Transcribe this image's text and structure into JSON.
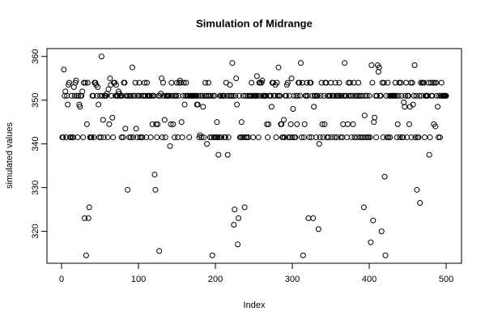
{
  "chart_data": {
    "type": "scatter",
    "title": "Simulation of Midrange",
    "x_label": "Index",
    "y_label": "simulated values",
    "color": "#000000",
    "x": [
      1,
      2,
      3,
      4,
      5,
      6,
      7,
      8,
      9,
      10,
      11,
      12,
      13,
      14,
      15,
      16,
      17,
      18,
      19,
      20,
      21,
      22,
      23,
      24,
      25,
      26,
      27,
      28,
      29,
      30,
      31,
      32,
      33,
      34,
      35,
      36,
      37,
      38,
      39,
      40,
      41,
      42,
      43,
      44,
      45,
      46,
      47,
      48,
      49,
      50,
      51,
      52,
      53,
      54,
      55,
      56,
      57,
      58,
      59,
      60,
      61,
      62,
      63,
      64,
      65,
      66,
      67,
      68,
      69,
      70,
      71,
      72,
      73,
      74,
      75,
      76,
      77,
      78,
      79,
      80,
      81,
      82,
      83,
      84,
      85,
      86,
      87,
      88,
      89,
      90,
      91,
      92,
      93,
      94,
      95,
      96,
      97,
      98,
      99,
      100,
      101,
      102,
      103,
      104,
      105,
      106,
      107,
      108,
      109,
      110,
      111,
      112,
      113,
      114,
      115,
      116,
      117,
      118,
      119,
      120,
      121,
      122,
      123,
      124,
      125,
      126,
      127,
      128,
      129,
      130,
      131,
      132,
      133,
      134,
      135,
      136,
      137,
      138,
      139,
      140,
      141,
      142,
      143,
      144,
      145,
      146,
      147,
      148,
      149,
      150,
      151,
      152,
      153,
      154,
      155,
      156,
      157,
      158,
      159,
      160,
      161,
      162,
      163,
      164,
      165,
      166,
      167,
      168,
      169,
      170,
      171,
      172,
      173,
      174,
      175,
      176,
      177,
      178,
      179,
      180,
      181,
      182,
      183,
      184,
      185,
      186,
      187,
      188,
      189,
      190,
      191,
      192,
      193,
      194,
      195,
      196,
      197,
      198,
      199,
      200,
      201,
      202,
      203,
      204,
      205,
      206,
      207,
      208,
      209,
      210,
      211,
      212,
      213,
      214,
      215,
      216,
      217,
      218,
      219,
      220,
      221,
      222,
      223,
      224,
      225,
      226,
      227,
      228,
      229,
      230,
      231,
      232,
      233,
      234,
      235,
      236,
      237,
      238,
      239,
      240,
      241,
      242,
      243,
      244,
      245,
      246,
      247,
      248,
      249,
      250,
      251,
      252,
      253,
      254,
      255,
      256,
      257,
      258,
      259,
      260,
      261,
      262,
      263,
      264,
      265,
      266,
      267,
      268,
      269,
      270,
      271,
      272,
      273,
      274,
      275,
      276,
      277,
      278,
      279,
      280,
      281,
      282,
      283,
      284,
      285,
      286,
      287,
      288,
      289,
      290,
      291,
      292,
      293,
      294,
      295,
      296,
      297,
      298,
      299,
      300,
      301,
      302,
      303,
      304,
      305,
      306,
      307,
      308,
      309,
      310,
      311,
      312,
      313,
      314,
      315,
      316,
      317,
      318,
      319,
      320,
      321,
      322,
      323,
      324,
      325,
      326,
      327,
      328,
      329,
      330,
      331,
      332,
      333,
      334,
      335,
      336,
      337,
      338,
      339,
      340,
      341,
      342,
      343,
      344,
      345,
      346,
      347,
      348,
      349,
      350,
      351,
      352,
      353,
      354,
      355,
      356,
      357,
      358,
      359,
      360,
      361,
      362,
      363,
      364,
      365,
      366,
      367,
      368,
      369,
      370,
      371,
      372,
      373,
      374,
      375,
      376,
      377,
      378,
      379,
      380,
      381,
      382,
      383,
      384,
      385,
      386,
      387,
      388,
      389,
      390,
      391,
      392,
      393,
      394,
      395,
      396,
      397,
      398,
      399,
      400,
      401,
      402,
      403,
      404,
      405,
      406,
      407,
      408,
      409,
      410,
      411,
      412,
      413,
      414,
      415,
      416,
      417,
      418,
      419,
      420,
      421,
      422,
      423,
      424,
      425,
      426,
      427,
      428,
      429,
      430,
      431,
      432,
      433,
      434,
      435,
      436,
      437,
      438,
      439,
      440,
      441,
      442,
      443,
      444,
      445,
      446,
      447,
      448,
      449,
      450,
      451,
      452,
      453,
      454,
      455,
      456,
      457,
      458,
      459,
      460,
      461,
      462,
      463,
      464,
      465,
      466,
      467,
      468,
      469,
      470,
      471,
      472,
      473,
      474,
      475,
      476,
      477,
      478,
      479,
      480,
      481,
      482,
      483,
      484,
      485,
      486,
      487,
      488,
      489,
      490,
      491,
      492,
      493,
      494,
      495,
      496,
      497,
      498,
      499,
      500
    ],
    "values": [
      341.5,
      341.5,
      357,
      351,
      352,
      341.5,
      351,
      349,
      353.5,
      354,
      341.5,
      341.5,
      351,
      341.5,
      341.5,
      353,
      351,
      354,
      354.5,
      351,
      341.5,
      351,
      349,
      348.5,
      351,
      351,
      352,
      341.5,
      354,
      323,
      354,
      314.5,
      344.5,
      354,
      323,
      325.5,
      341.5,
      341.5,
      341.5,
      351,
      351,
      341.5,
      354,
      354,
      353.5,
      351,
      353,
      349,
      341.5,
      351,
      341.5,
      360,
      351,
      345.5,
      341.5,
      351,
      351,
      351,
      351.5,
      341.5,
      352.5,
      344.5,
      355,
      353.5,
      351,
      346,
      341.5,
      354,
      354,
      351,
      353.5,
      351,
      351,
      352,
      351.5,
      351,
      351,
      341.5,
      351,
      341.5,
      354,
      354,
      343.5,
      351,
      351,
      329.5,
      351,
      341.5,
      351,
      341.5,
      351,
      357.5,
      341.5,
      351,
      351,
      354,
      343.5,
      341.5,
      351,
      351,
      354,
      341.5,
      351,
      341.5,
      341.5,
      351,
      351,
      354,
      351,
      341.5,
      354,
      351,
      351,
      351,
      351,
      341.5,
      351,
      344.5,
      351,
      351,
      333,
      329.5,
      344.5,
      341.5,
      344.5,
      351,
      315.5,
      351,
      351.5,
      355,
      341.5,
      354,
      351,
      345.5,
      341.5,
      351,
      351,
      351,
      351,
      351,
      339.5,
      344.5,
      354,
      351,
      344.5,
      351,
      341.5,
      351,
      351,
      354,
      341.5,
      351,
      354,
      354.5,
      354,
      345,
      341.5,
      351,
      354,
      349,
      351,
      354,
      351,
      351,
      351,
      341.5,
      351,
      351,
      351,
      351,
      351,
      351,
      351,
      351,
      351,
      349,
      349,
      351,
      341.5,
      342,
      351,
      341.5,
      351,
      348.5,
      341.5,
      351,
      354,
      351,
      340,
      351,
      354,
      351,
      341.5,
      351,
      341.5,
      314.5,
      351,
      341.5,
      351,
      341.5,
      341.5,
      345,
      341.5,
      337.5,
      341.5,
      351,
      351,
      341.5,
      351,
      351,
      351,
      341.5,
      341.5,
      354,
      351,
      337.5,
      341.5,
      351,
      353.5,
      351,
      351,
      358.5,
      351,
      321.5,
      325,
      351,
      355,
      349,
      317,
      323,
      351,
      341.5,
      341.5,
      345,
      341.5,
      351,
      341.5,
      325.5,
      351,
      341.5,
      341.5,
      351,
      341.5,
      351,
      351,
      351,
      354,
      351,
      341.5,
      351,
      351,
      351,
      351,
      355.5,
      351,
      341.5,
      354,
      354,
      351,
      354,
      354.5,
      351,
      351,
      351,
      351,
      351,
      344.5,
      341.5,
      344.5,
      351,
      351,
      351,
      348.5,
      354,
      354,
      351,
      351,
      353.5,
      341.5,
      354,
      351,
      357.5,
      351,
      351,
      344.5,
      344.5,
      341.5,
      341.5,
      345.5,
      341.5,
      351,
      351,
      353.5,
      354,
      341.5,
      351,
      341.5,
      344.5,
      355,
      341.5,
      348,
      351,
      341.5,
      341.5,
      351,
      344.5,
      351,
      354,
      354,
      351,
      358.5,
      341.5,
      354,
      314.5,
      341.5,
      344.5,
      351,
      351,
      354,
      351,
      323,
      341.5,
      354,
      354,
      341.5,
      351,
      323,
      348.5,
      351,
      351,
      341.5,
      351,
      351,
      320.5,
      340,
      341.5,
      351,
      354,
      344.5,
      341.5,
      351,
      344.5,
      354,
      354,
      341.5,
      351,
      341.5,
      351,
      351,
      354,
      341.5,
      351,
      351,
      351,
      341.5,
      354,
      351,
      341.5,
      351,
      351,
      354,
      351,
      341.5,
      351,
      341.5,
      344.5,
      351,
      358.5,
      351,
      351,
      341.5,
      344.5,
      354,
      351,
      354,
      351,
      341.5,
      351,
      344.5,
      354,
      341.5,
      351,
      351,
      341.5,
      351,
      354,
      351,
      341.5,
      351,
      341.5,
      351,
      341.5,
      325.5,
      346.5,
      351,
      341.5,
      351,
      341.5,
      341.5,
      351,
      341.5,
      317.5,
      358,
      354,
      322.5,
      345,
      346,
      351,
      341.5,
      351,
      358,
      356.5,
      357.5,
      351,
      351,
      320,
      354,
      341.5,
      354,
      332.5,
      314.5,
      351,
      341.5,
      354,
      341.5,
      351,
      341.5,
      351,
      351,
      351,
      351,
      351,
      351,
      354,
      351,
      341.5,
      344.5,
      351,
      354,
      341.5,
      354,
      351,
      341.5,
      341.5,
      349.5,
      348.5,
      351,
      354,
      341.5,
      351,
      351,
      344.5,
      348.5,
      354,
      341.5,
      354,
      349,
      351,
      358,
      341.5,
      351,
      329.5,
      341.5,
      341.5,
      351,
      326.5,
      354,
      351,
      354,
      354,
      354,
      341.5,
      351,
      351,
      351,
      351,
      354,
      337.5,
      341.5,
      354,
      351,
      351,
      354,
      344.5,
      354,
      344,
      354,
      351,
      348.5,
      341.5,
      351,
      341.5,
      351,
      354,
      351,
      351,
      351,
      351,
      351,
      351
    ],
    "xlim": [
      -18.96,
      519.96
    ],
    "ylim": [
      312.7,
      361.8
    ],
    "xticks": [
      0,
      100,
      200,
      300,
      400,
      500
    ],
    "yticks": [
      320,
      330,
      340,
      350,
      360
    ]
  }
}
